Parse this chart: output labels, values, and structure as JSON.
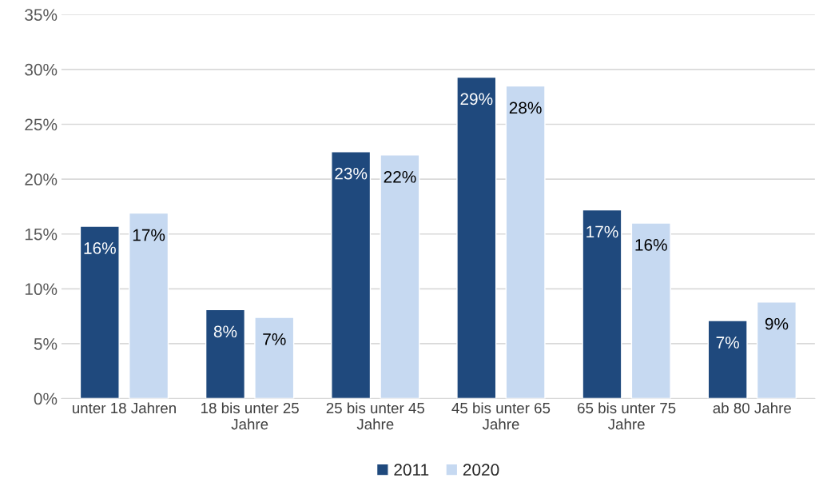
{
  "chart_data": {
    "type": "bar",
    "categories": [
      "unter 18 Jahren",
      "18 bis unter 25\nJahre",
      "25 bis unter 45\nJahre",
      "45 bis unter 65\nJahre",
      "65 bis unter 75\nJahre",
      "ab 80 Jahre"
    ],
    "series": [
      {
        "name": "2011",
        "color": "#1f497d",
        "values": [
          15.7,
          8.1,
          22.5,
          29.3,
          17.2,
          7.1
        ],
        "value_labels": [
          "16%",
          "8%",
          "23%",
          "29%",
          "17%",
          "7%"
        ]
      },
      {
        "name": "2020",
        "color": "#c6d9f1",
        "values": [
          16.9,
          7.4,
          22.2,
          28.5,
          16.0,
          8.8
        ],
        "value_labels": [
          "17%",
          "7%",
          "22%",
          "28%",
          "16%",
          "9%"
        ]
      }
    ],
    "ylim": [
      0,
      35
    ],
    "yticks": [
      {
        "value": 0,
        "label": "0%"
      },
      {
        "value": 5,
        "label": "5%"
      },
      {
        "value": 10,
        "label": "10%"
      },
      {
        "value": 15,
        "label": "15%"
      },
      {
        "value": 20,
        "label": "20%"
      },
      {
        "value": 25,
        "label": "25%"
      },
      {
        "value": 30,
        "label": "30%"
      },
      {
        "value": 35,
        "label": "35%"
      }
    ],
    "grid": "y",
    "legend": "bottom"
  }
}
